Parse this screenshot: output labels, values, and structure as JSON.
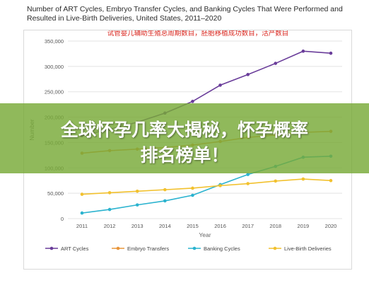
{
  "title": "Number of ART Cycles, Embryo Transfer Cycles, and Banking Cycles That Were Performed and Resulted in Live-Birth Deliveries, United States, 2011–2020",
  "overlay": {
    "chinese_subtitle": "试管婴儿辅助生殖总周期数目，胚胎移植成功数目，活产数目",
    "banner_line1": "全球怀孕几率大揭秘，怀孕概率",
    "banner_line2": "排名榜单！"
  },
  "colors": {
    "art": "#6a3d9a",
    "embryo": "#e8953a",
    "banking": "#2bb3cf",
    "live_birth": "#f2c12e",
    "subtitle_red": "#d9241c"
  },
  "chart_data": {
    "type": "line",
    "xlabel": "Year",
    "ylabel": "Number",
    "x": [
      2011,
      2012,
      2013,
      2014,
      2015,
      2016,
      2017,
      2018,
      2019,
      2020
    ],
    "ylim": [
      0,
      350000
    ],
    "yticks": [
      "0",
      "50,000",
      "100,000",
      "150,000",
      "200,000",
      "250,000",
      "300,000",
      "350,000"
    ],
    "grid": true,
    "legend_position": "bottom",
    "series": [
      {
        "name": "ART Cycles",
        "color_key": "art",
        "values": [
          164000,
          176000,
          190000,
          208000,
          231000,
          263000,
          284000,
          306000,
          330000,
          326000
        ]
      },
      {
        "name": "Embryo Transfers",
        "color_key": "embryo",
        "values": [
          129000,
          134000,
          137000,
          140000,
          145000,
          152000,
          160000,
          165000,
          170000,
          172000
        ]
      },
      {
        "name": "Banking Cycles",
        "color_key": "banking",
        "values": [
          11000,
          18000,
          27000,
          35000,
          46000,
          67000,
          87000,
          103000,
          121000,
          123000
        ]
      },
      {
        "name": "Live-Birth Deliveries",
        "color_key": "live_birth",
        "values": [
          48000,
          51000,
          54000,
          57000,
          60000,
          65000,
          69000,
          74000,
          78000,
          75000
        ]
      }
    ]
  }
}
